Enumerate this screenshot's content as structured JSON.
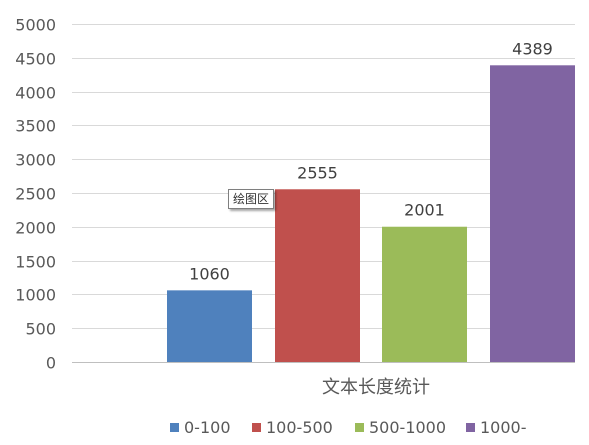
{
  "chart_data": {
    "type": "bar",
    "title": "",
    "xlabel": "文本长度统计",
    "ylabel": "",
    "categories": [
      "文本长度统计"
    ],
    "ylim": [
      0,
      5000
    ],
    "yticks": [
      0,
      500,
      1000,
      1500,
      2000,
      2500,
      3000,
      3500,
      4000,
      4500,
      5000
    ],
    "grid": true,
    "legend_position": "bottom",
    "series": [
      {
        "name": "0-100",
        "values": [
          1060
        ],
        "color": "#4f81bd"
      },
      {
        "name": "100-500",
        "values": [
          2555
        ],
        "color": "#c0504d"
      },
      {
        "name": "500-1000",
        "values": [
          2001
        ],
        "color": "#9bbb59"
      },
      {
        "name": "1000-",
        "values": [
          4389
        ],
        "color": "#8064a2"
      }
    ]
  },
  "tooltip": {
    "text": "绘图区"
  }
}
